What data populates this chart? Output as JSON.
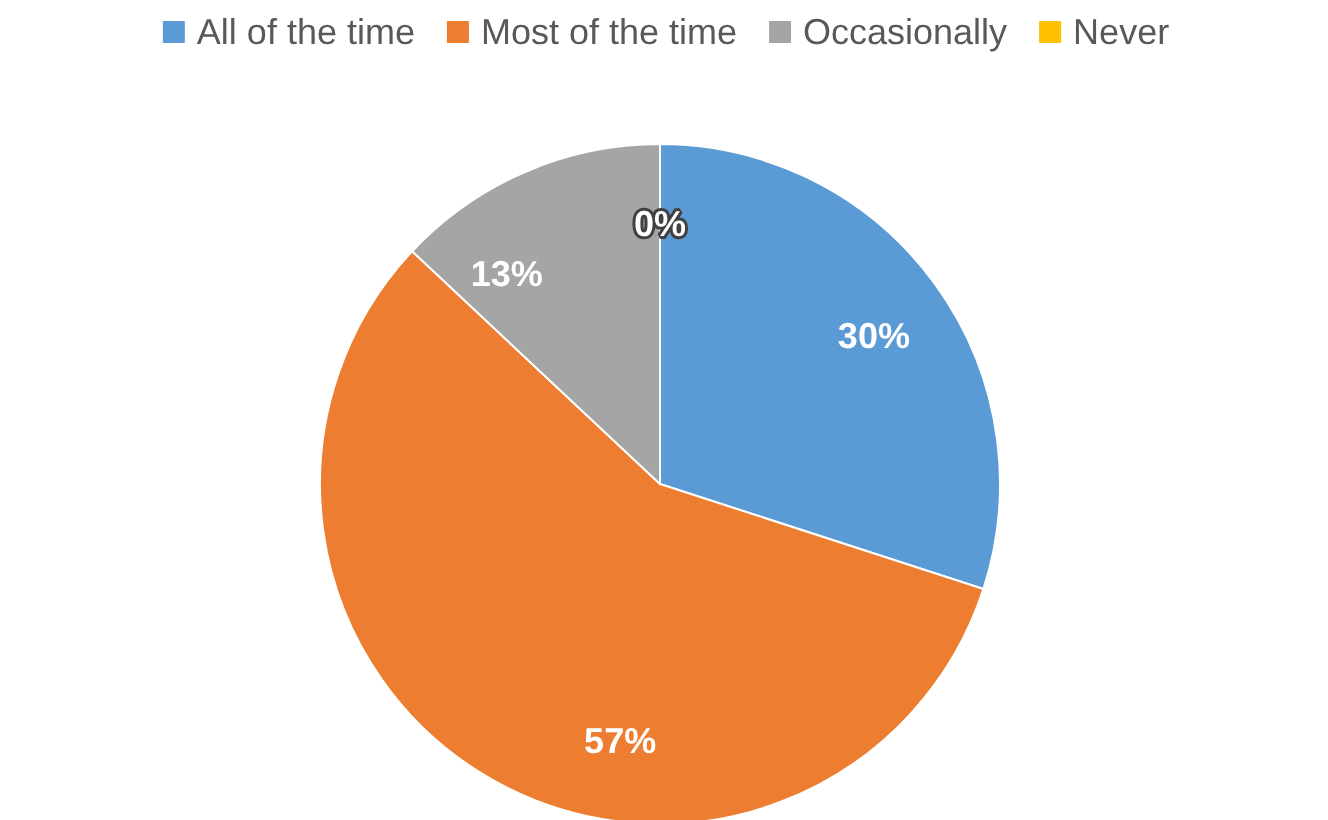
{
  "chart_data": {
    "type": "pie",
    "categories": [
      "All of the time",
      "Most of the time",
      "Occasionally",
      "Never"
    ],
    "values": [
      30,
      57,
      13,
      0
    ],
    "colors": [
      "#5b9bd5",
      "#ed7d31",
      "#a5a5a5",
      "#ffc000"
    ],
    "value_labels": [
      "30%",
      "57%",
      "13%",
      "0%"
    ],
    "legend": "top"
  }
}
